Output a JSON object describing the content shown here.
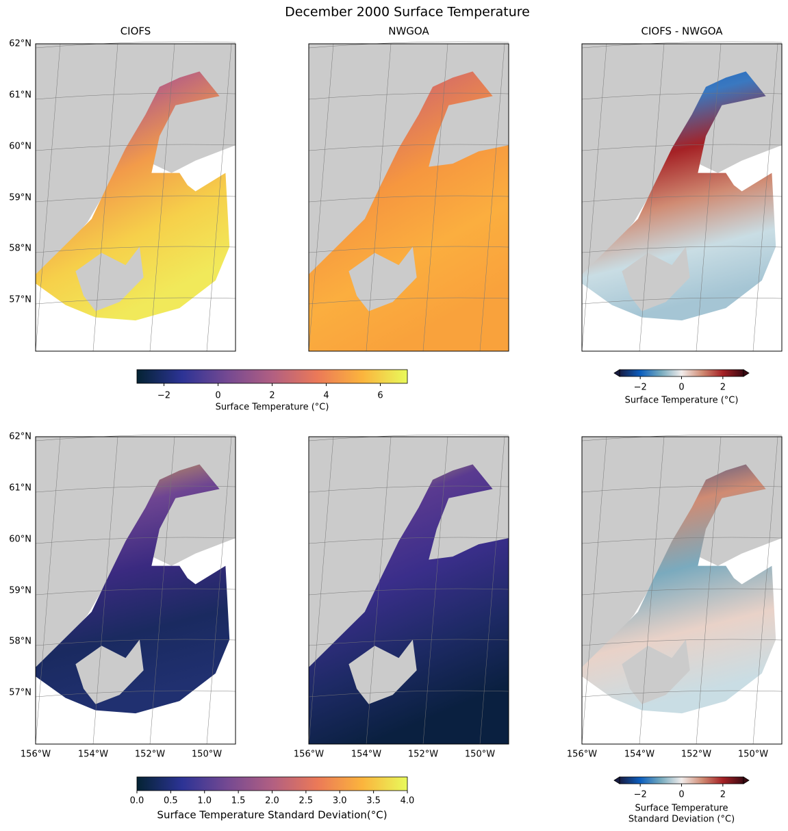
{
  "title": "December 2000 Surface Temperature",
  "panel_titles": [
    "CIOFS",
    "NWGOA",
    "CIOFS - NWGOA"
  ],
  "lat_labels": [
    "62°N",
    "61°N",
    "60°N",
    "59°N",
    "58°N",
    "57°N"
  ],
  "lon_labels": [
    "156°W",
    "154°W",
    "152°W",
    "150°W"
  ],
  "colorbars": [
    {
      "label": "Surface Temperature (°C)",
      "lim": [
        -3,
        7
      ],
      "ticks": [
        {
          "value": -2,
          "label": "−2"
        },
        0,
        2,
        4,
        6
      ],
      "colors": [
        "#042333",
        "#2c3395",
        "#744992",
        "#b15f82",
        "#eb7958",
        "#fbb43d",
        "#e8fa5b"
      ],
      "extend": false
    },
    {
      "label": "Surface Temperature (°C)",
      "lim": [
        -3,
        3
      ],
      "ticks": [
        {
          "value": -2,
          "label": "−2"
        },
        0,
        2
      ],
      "colors": [
        "#181c43",
        "#0c5ebe",
        "#75aabe",
        "#f1eceb",
        "#d08b73",
        "#a52125",
        "#3c0912"
      ],
      "extend": true
    },
    {
      "label": "Surface Temperature Standard Deviation(°C)",
      "lim": [
        0,
        4
      ],
      "ticks": [
        {
          "value": 0,
          "label": "0.0"
        },
        0.5,
        {
          "value": 1,
          "label": "1.0"
        },
        1.5,
        {
          "value": 2,
          "label": "2.0"
        },
        2.5,
        {
          "value": 3,
          "label": "3.0"
        },
        3.5,
        {
          "value": 4,
          "label": "4.0"
        }
      ],
      "colors": [
        "#042333",
        "#2c3395",
        "#744992",
        "#b15f82",
        "#eb7958",
        "#fbb43d",
        "#e8fa5b"
      ],
      "extend": false
    },
    {
      "label": [
        "Surface Temperature",
        "Standard Deviation (°C)"
      ],
      "lim": [
        -3,
        3
      ],
      "ticks": [
        {
          "value": -2,
          "label": "−2"
        },
        0,
        2
      ],
      "colors": [
        "#181c43",
        "#0c5ebe",
        "#75aabe",
        "#f1eceb",
        "#d08b73",
        "#a52125",
        "#3c0912"
      ],
      "extend": true
    }
  ]
}
